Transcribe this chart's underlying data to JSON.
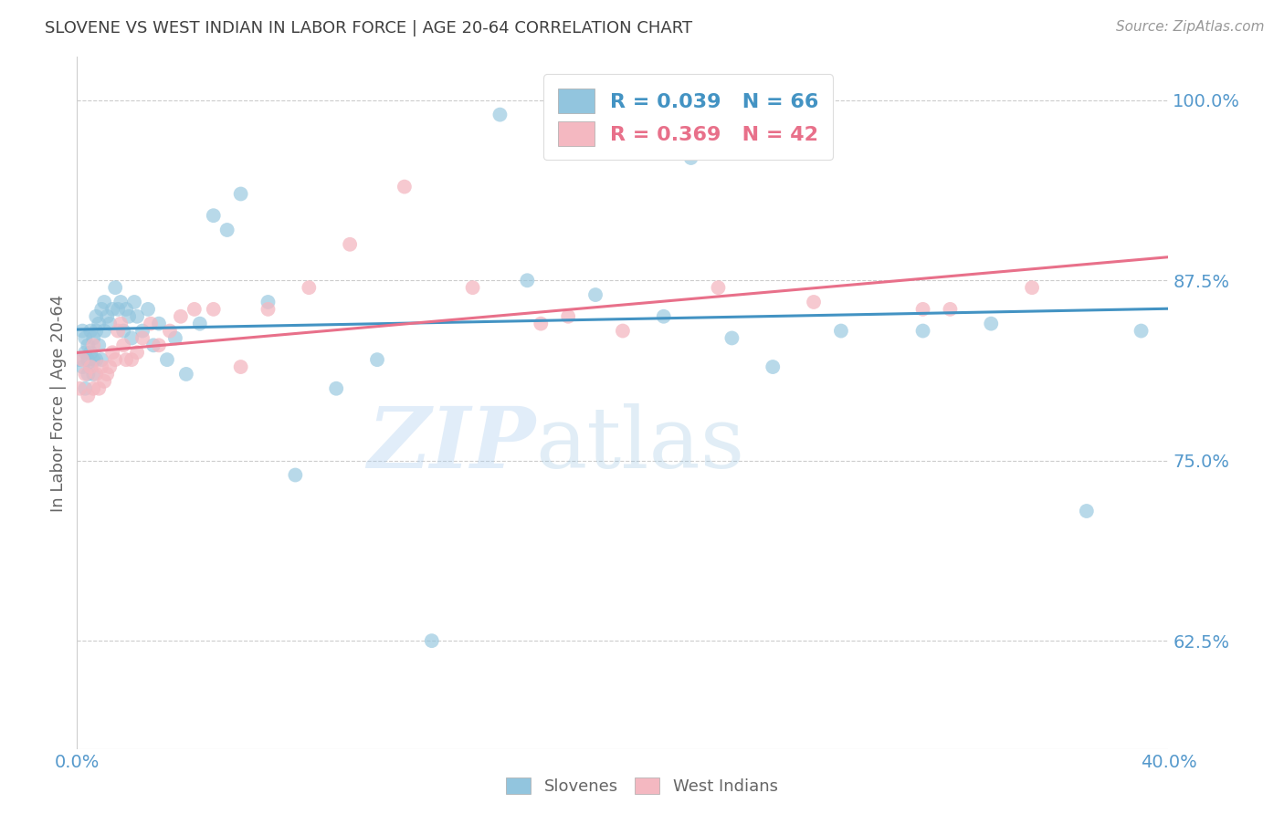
{
  "title": "SLOVENE VS WEST INDIAN IN LABOR FORCE | AGE 20-64 CORRELATION CHART",
  "source": "Source: ZipAtlas.com",
  "ylabel": "In Labor Force | Age 20-64",
  "xlim": [
    0.0,
    0.4
  ],
  "ylim": [
    0.55,
    1.03
  ],
  "yticks": [
    0.625,
    0.75,
    0.875,
    1.0
  ],
  "ytick_labels": [
    "62.5%",
    "75.0%",
    "87.5%",
    "100.0%"
  ],
  "legend_blue_r": "0.039",
  "legend_blue_n": "66",
  "legend_pink_r": "0.369",
  "legend_pink_n": "42",
  "blue_color": "#92c5de",
  "pink_color": "#f4b8c1",
  "blue_line_color": "#4393c3",
  "pink_line_color": "#e8708a",
  "title_color": "#404040",
  "axis_label_color": "#5599cc",
  "watermark_zip": "ZIP",
  "watermark_atlas": "atlas",
  "background_color": "#ffffff",
  "slovenes_x": [
    0.001,
    0.002,
    0.002,
    0.003,
    0.003,
    0.003,
    0.004,
    0.004,
    0.004,
    0.005,
    0.005,
    0.005,
    0.006,
    0.006,
    0.006,
    0.007,
    0.007,
    0.007,
    0.008,
    0.008,
    0.009,
    0.009,
    0.01,
    0.01,
    0.011,
    0.012,
    0.013,
    0.014,
    0.015,
    0.016,
    0.017,
    0.018,
    0.019,
    0.02,
    0.021,
    0.022,
    0.024,
    0.026,
    0.028,
    0.03,
    0.033,
    0.036,
    0.04,
    0.045,
    0.05,
    0.055,
    0.06,
    0.07,
    0.08,
    0.095,
    0.11,
    0.13,
    0.155,
    0.175,
    0.2,
    0.225,
    0.255,
    0.28,
    0.165,
    0.19,
    0.215,
    0.24,
    0.31,
    0.335,
    0.37,
    0.39
  ],
  "slovenes_y": [
    0.82,
    0.815,
    0.84,
    0.825,
    0.835,
    0.8,
    0.82,
    0.83,
    0.81,
    0.825,
    0.84,
    0.815,
    0.835,
    0.82,
    0.81,
    0.85,
    0.84,
    0.82,
    0.845,
    0.83,
    0.855,
    0.82,
    0.84,
    0.86,
    0.85,
    0.845,
    0.855,
    0.87,
    0.855,
    0.86,
    0.84,
    0.855,
    0.85,
    0.835,
    0.86,
    0.85,
    0.84,
    0.855,
    0.83,
    0.845,
    0.82,
    0.835,
    0.81,
    0.845,
    0.92,
    0.91,
    0.935,
    0.86,
    0.74,
    0.8,
    0.82,
    0.625,
    0.99,
    1.0,
    0.99,
    0.96,
    0.815,
    0.84,
    0.875,
    0.865,
    0.85,
    0.835,
    0.84,
    0.845,
    0.715,
    0.84
  ],
  "west_indians_x": [
    0.001,
    0.002,
    0.003,
    0.004,
    0.005,
    0.006,
    0.006,
    0.007,
    0.008,
    0.009,
    0.01,
    0.011,
    0.012,
    0.013,
    0.014,
    0.015,
    0.016,
    0.017,
    0.018,
    0.02,
    0.022,
    0.024,
    0.027,
    0.03,
    0.034,
    0.038,
    0.043,
    0.05,
    0.06,
    0.07,
    0.085,
    0.1,
    0.12,
    0.145,
    0.17,
    0.2,
    0.235,
    0.27,
    0.31,
    0.35,
    0.18,
    0.32
  ],
  "west_indians_y": [
    0.8,
    0.82,
    0.81,
    0.795,
    0.815,
    0.83,
    0.8,
    0.81,
    0.8,
    0.815,
    0.805,
    0.81,
    0.815,
    0.825,
    0.82,
    0.84,
    0.845,
    0.83,
    0.82,
    0.82,
    0.825,
    0.835,
    0.845,
    0.83,
    0.84,
    0.85,
    0.855,
    0.855,
    0.815,
    0.855,
    0.87,
    0.9,
    0.94,
    0.87,
    0.845,
    0.84,
    0.87,
    0.86,
    0.855,
    0.87,
    0.85,
    0.855
  ]
}
